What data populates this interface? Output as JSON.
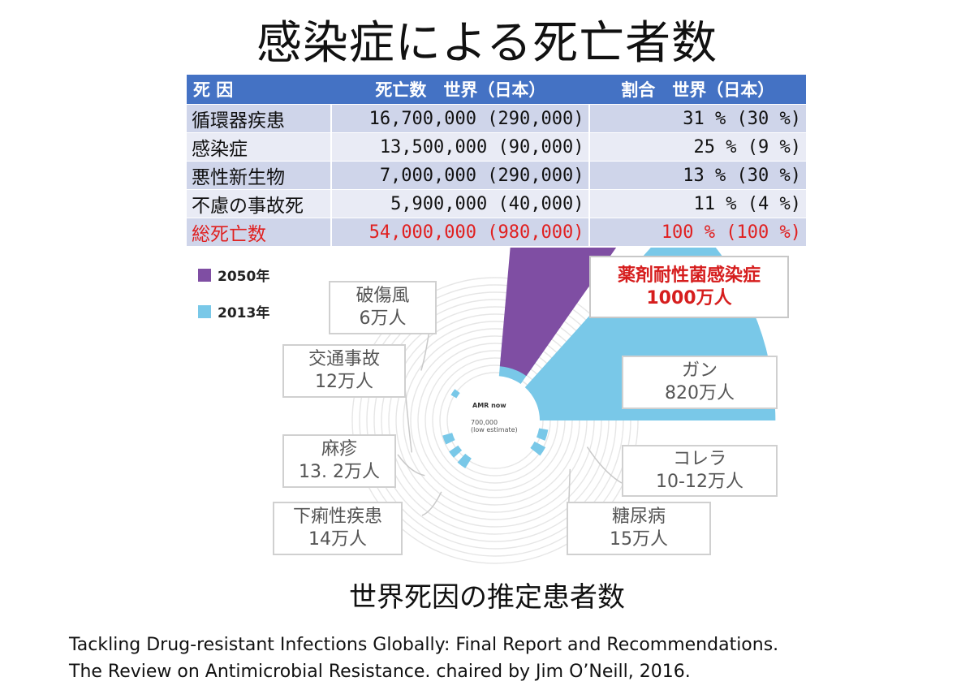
{
  "title": "感染症による死亡者数",
  "table": {
    "headers": [
      "死 因",
      "死亡数　世界（日本）",
      "割合　世界（日本）"
    ],
    "rows": [
      {
        "cause": "循環器疾患",
        "deaths": "16,700,000 (290,000)",
        "share": "31 %  (30 %)"
      },
      {
        "cause": "感染症",
        "deaths": "13,500,000   (90,000)",
        "share": "25 %   (9 %)"
      },
      {
        "cause": "悪性新生物",
        "deaths": "7,000,000 (290,000)",
        "share": "13 %  (30 %)"
      },
      {
        "cause": "不慮の事故死",
        "deaths": "5,900,000   (40,000)",
        "share": "11 %   (4 %)"
      },
      {
        "cause": "総死亡数",
        "deaths": "54,000,000 (980,000)",
        "share": "100 % (100 %)"
      }
    ]
  },
  "colors": {
    "y2050": "#7f4ea3",
    "y2013": "#79c8e8",
    "accent_red": "#e02020",
    "header_blue": "#4472c4"
  },
  "chart_data": {
    "type": "radial-bar",
    "legend": [
      "2050年",
      "2013年"
    ],
    "center_label": {
      "line1": "AMR now",
      "line2": "700,000",
      "line3": "(low estimate)"
    },
    "categories": [
      "薬剤耐性菌感染症",
      "ガン",
      "コレラ",
      "糖尿病",
      "下痢性疾患",
      "麻疹",
      "交通事故",
      "破傷風"
    ],
    "series": [
      {
        "name": "2050年",
        "values": [
          1000,
          null,
          null,
          null,
          null,
          null,
          null,
          null
        ]
      },
      {
        "name": "2013年",
        "values": [
          70,
          820,
          11,
          15,
          14,
          13.2,
          12,
          6
        ]
      }
    ],
    "labels": [
      {
        "name": "薬剤耐性菌感染症",
        "value": "1000万人"
      },
      {
        "name": "ガン",
        "value": "820万人"
      },
      {
        "name": "コレラ",
        "value": "10-12万人"
      },
      {
        "name": "糖尿病",
        "value": "15万人"
      },
      {
        "name": "下痢性疾患",
        "value": "14万人"
      },
      {
        "name": "麻疹",
        "value": "13. 2万人"
      },
      {
        "name": "交通事故",
        "value": "12万人"
      },
      {
        "name": "破傷風",
        "value": "6万人"
      }
    ]
  },
  "subtitle": "世界死因の推定患者数",
  "reference": {
    "line1": "Tackling Drug-resistant Infections Globally: Final Report and Recommendations.",
    "line2": "The Review on Antimicrobial Resistance. chaired by Jim O’Neill, 2016."
  }
}
